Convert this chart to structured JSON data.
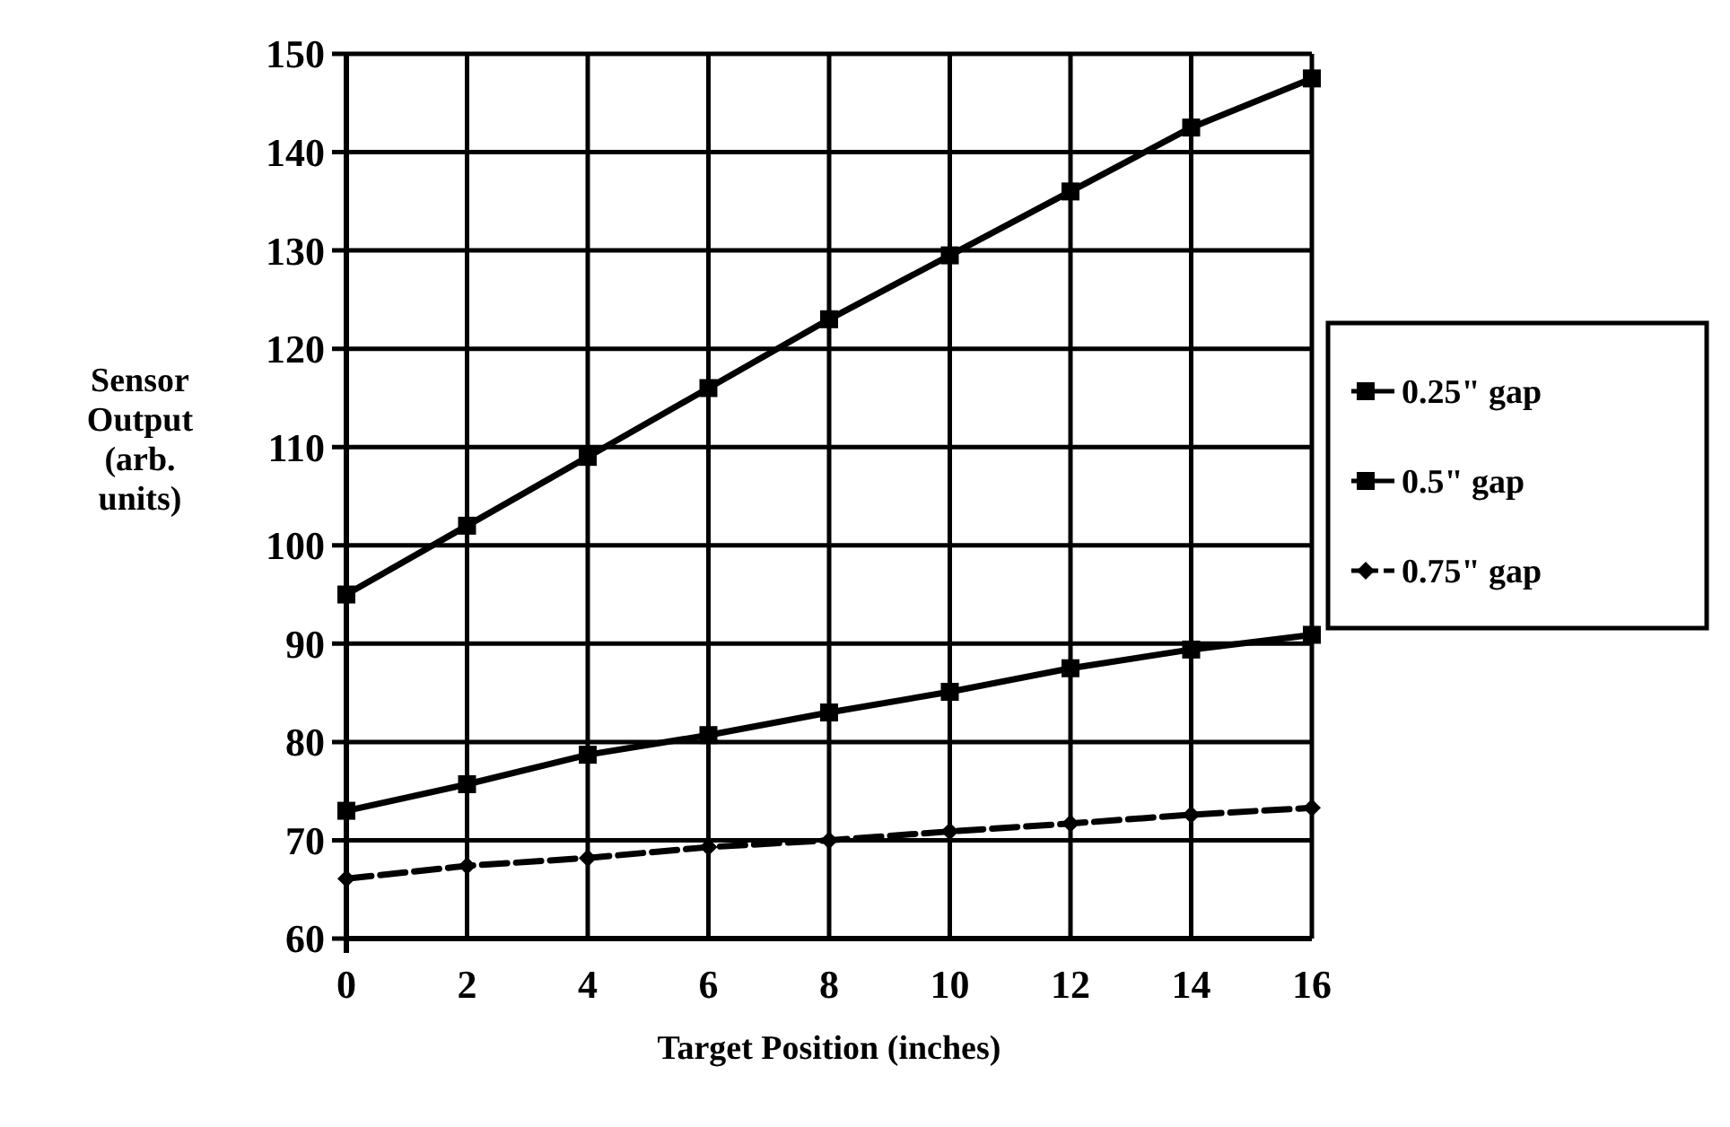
{
  "chart_data": {
    "type": "line",
    "xlabel": "Target Position (inches)",
    "ylabel": "Sensor Output (arb. units)",
    "x": [
      0,
      2,
      4,
      6,
      8,
      10,
      12,
      14,
      16
    ],
    "xlim": [
      0,
      16
    ],
    "xticks": [
      0,
      2,
      4,
      6,
      8,
      10,
      12,
      14,
      16
    ],
    "ylim": [
      60,
      150
    ],
    "yticks": [
      60,
      70,
      80,
      90,
      100,
      110,
      120,
      130,
      140,
      150
    ],
    "grid": true,
    "legend": "right",
    "series": [
      {
        "name": "0.25\" gap",
        "color": "#000000",
        "marker": "square",
        "line_style": "solid",
        "values": [
          95,
          102,
          109,
          116,
          123,
          129.5,
          136,
          142.5,
          147.5
        ]
      },
      {
        "name": "0.5\" gap",
        "color": "#000000",
        "marker": "square",
        "line_style": "solid",
        "values": [
          73,
          75.7,
          78.7,
          80.7,
          83,
          85.1,
          87.5,
          89.4,
          90.9
        ]
      },
      {
        "name": "0.75\" gap",
        "color": "#000000",
        "marker": "diamond",
        "line_style": "dashed",
        "values": [
          66.1,
          67.4,
          68.2,
          69.3,
          70,
          70.9,
          71.7,
          72.6,
          73.3
        ]
      }
    ]
  }
}
